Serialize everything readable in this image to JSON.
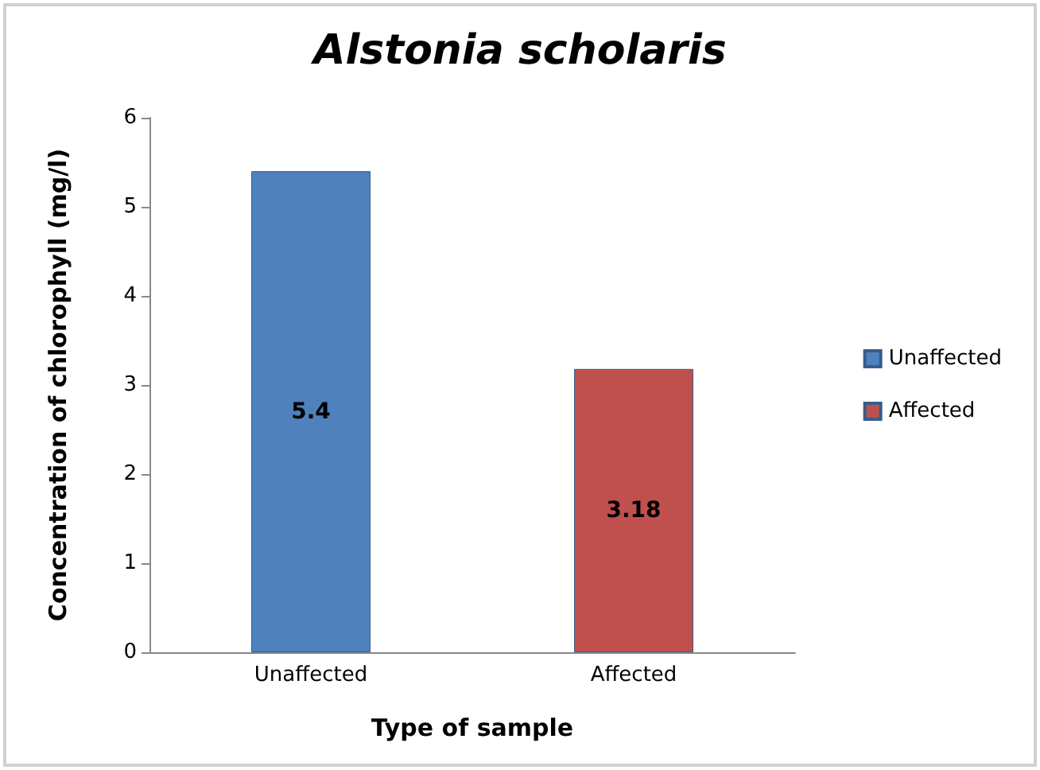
{
  "chart_data": {
    "type": "bar",
    "title": "Alstonia scholaris",
    "xlabel": "Type of sample",
    "ylabel": "Concentration of chlorophyll (mg/l)",
    "categories": [
      "Unaffected",
      "Affected"
    ],
    "series": [
      {
        "name": "Unaffected",
        "color": "#4f81bd",
        "values": [
          5.4,
          null
        ]
      },
      {
        "name": "Affected",
        "color": "#c0504d",
        "values": [
          null,
          3.18
        ]
      }
    ],
    "ylim": [
      0,
      6
    ],
    "yticks": [
      0,
      1,
      2,
      3,
      4,
      5,
      6
    ],
    "grid": false,
    "legend": "right",
    "data_labels": true
  }
}
